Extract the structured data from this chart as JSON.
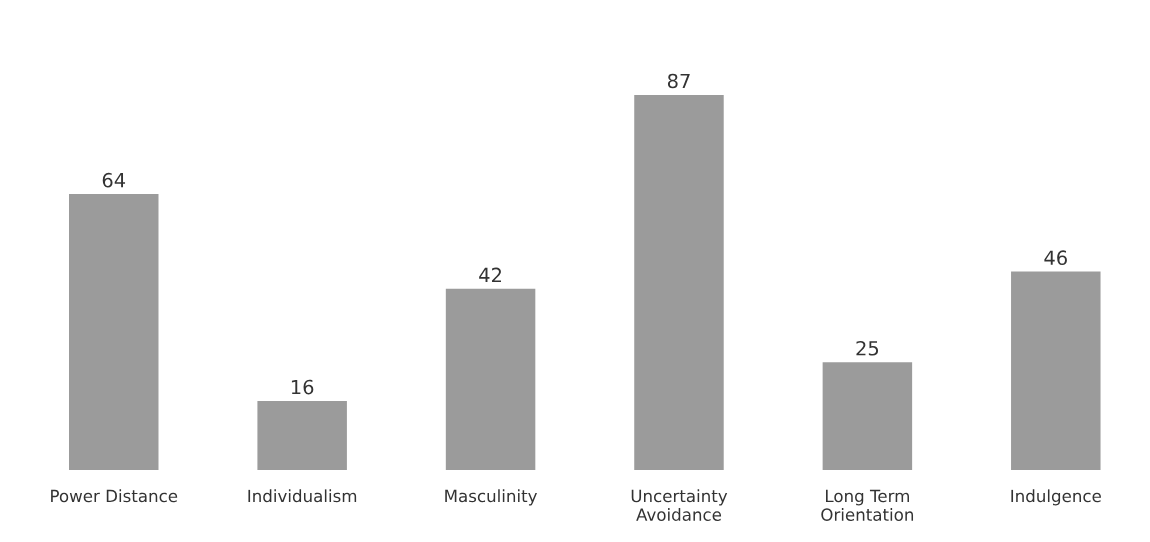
{
  "chart_data": {
    "type": "bar",
    "categories": [
      "Power Distance",
      "Individualism",
      "Masculinity",
      "Uncertainty\nAvoidance",
      "Long Term\nOrientation",
      "Indulgence"
    ],
    "values": [
      64,
      16,
      42,
      87,
      25,
      46
    ],
    "color": "#9b9b9b",
    "data_labels": true,
    "grid": false,
    "legend": false,
    "tick_labels": "x"
  }
}
